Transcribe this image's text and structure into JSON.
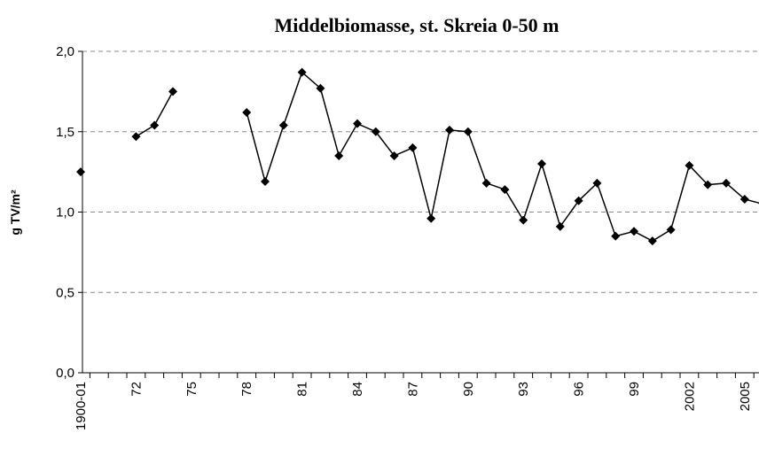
{
  "chart_data": {
    "type": "line",
    "title": "Middelbiomasse, st. Skreia 0-50 m",
    "y_label": "g TV/m²",
    "categories": [
      "1900-01",
      null,
      null,
      "72",
      null,
      null,
      "75",
      null,
      null,
      "78",
      null,
      null,
      "81",
      null,
      null,
      "84",
      null,
      null,
      "87",
      null,
      null,
      "90",
      null,
      null,
      "93",
      null,
      null,
      "96",
      null,
      null,
      "99",
      null,
      null,
      "2002",
      null,
      null,
      "2005",
      null
    ],
    "series": [
      {
        "name": "Middelbiomasse",
        "color": "#000000",
        "values": [
          1.25,
          null,
          null,
          1.47,
          1.54,
          1.75,
          null,
          null,
          null,
          1.62,
          1.19,
          1.54,
          1.87,
          1.77,
          1.35,
          1.55,
          1.5,
          1.35,
          1.4,
          0.96,
          1.51,
          1.5,
          1.18,
          1.14,
          0.95,
          1.3,
          0.91,
          1.07,
          1.18,
          0.85,
          0.88,
          0.82,
          0.89,
          1.29,
          1.17,
          1.18,
          1.08,
          1.05
        ]
      }
    ],
    "ylim": [
      0,
      2
    ],
    "yticks": [
      {
        "value": 0,
        "label": "0,0"
      },
      {
        "value": 0.5,
        "label": "0,5"
      },
      {
        "value": 1,
        "label": "1,0"
      },
      {
        "value": 1.5,
        "label": "1,5"
      },
      {
        "value": 2,
        "label": "2,0"
      }
    ],
    "grid": true
  }
}
